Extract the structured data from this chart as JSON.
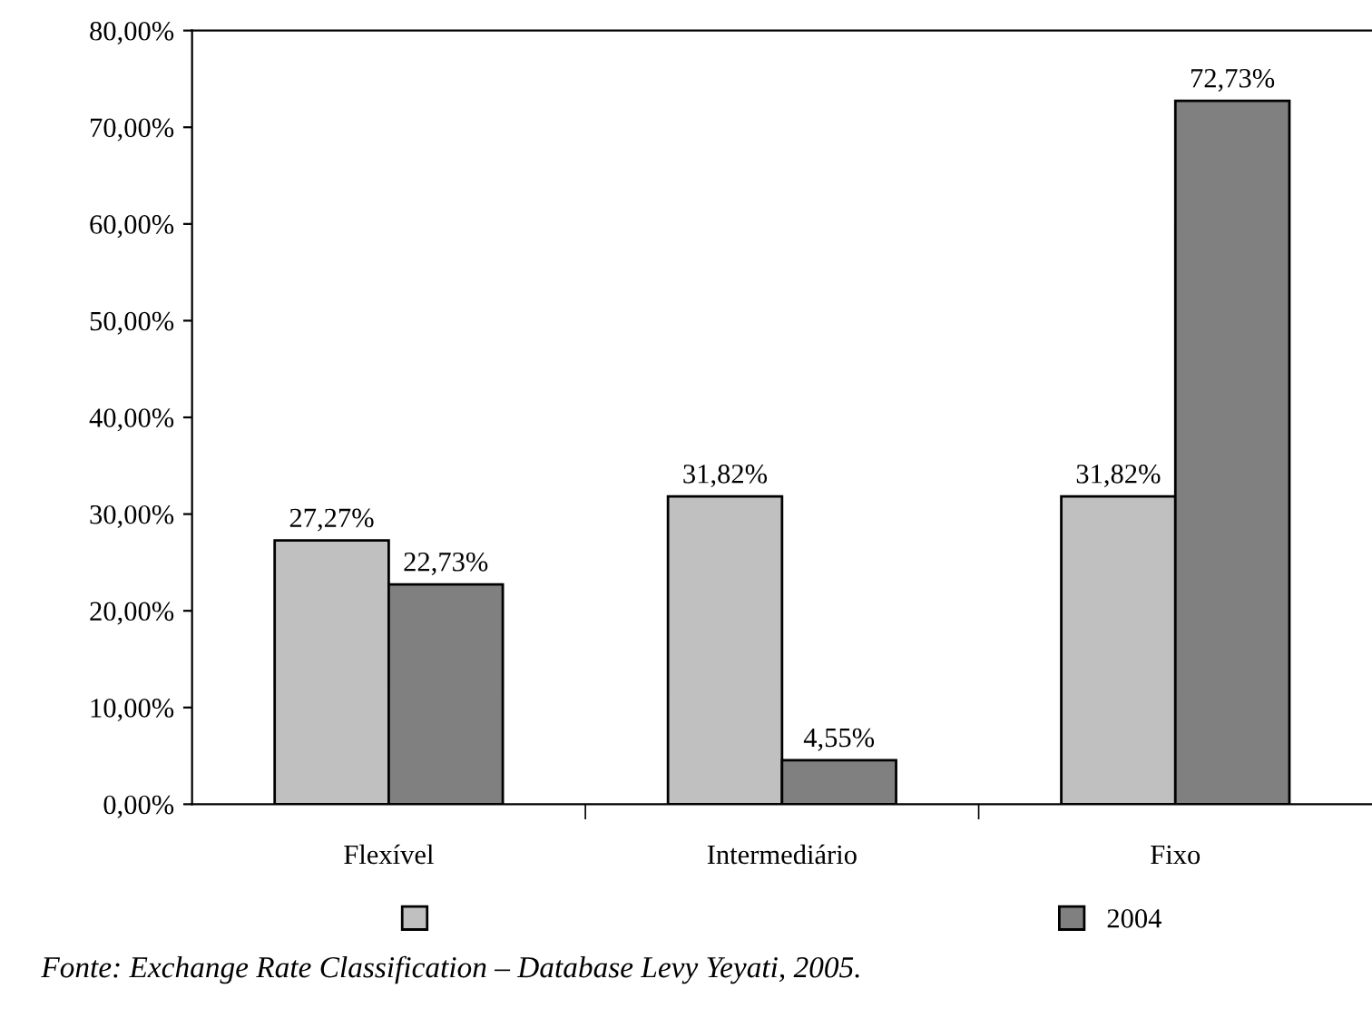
{
  "chart_data": {
    "type": "bar",
    "categories": [
      "Flexível",
      "Intermediário",
      "Fixo"
    ],
    "series": [
      {
        "color": "#c0c0c0",
        "values": [
          27.27,
          31.82,
          31.82
        ],
        "value_labels": [
          "27,27%",
          "31,82%",
          "31,82%"
        ]
      },
      {
        "name": "2004",
        "color": "#808080",
        "values": [
          22.73,
          4.55,
          72.73
        ],
        "value_labels": [
          "22,73%",
          "4,55%",
          "72,73%"
        ]
      }
    ],
    "ylim": [
      0,
      80
    ],
    "yticks": [
      {
        "value": 0,
        "label": "0,00%"
      },
      {
        "value": 10,
        "label": "10,00%"
      },
      {
        "value": 20,
        "label": "20,00%"
      },
      {
        "value": 30,
        "label": "30,00%"
      },
      {
        "value": 40,
        "label": "40,00%"
      },
      {
        "value": 50,
        "label": "50,00%"
      },
      {
        "value": 60,
        "label": "60,00%"
      },
      {
        "value": 70,
        "label": "70,00%"
      },
      {
        "value": 80,
        "label": "80,00%"
      }
    ],
    "grid": false,
    "legend": "bottom",
    "annotations": [
      "Fonte: Exchange Rate Classification – Database Levy Yeyati, 2005."
    ]
  }
}
